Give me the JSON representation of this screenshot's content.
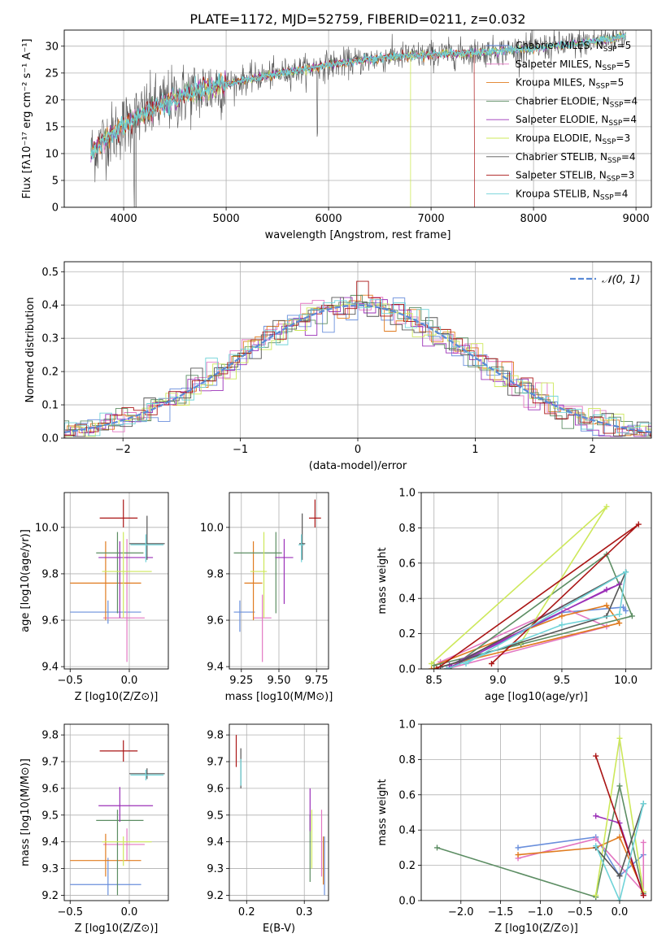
{
  "figure_title": "PLATE=1172, MJD=52759, FIBERID=0211, z=0.032",
  "colors": [
    "#6a8fdc",
    "#e377c2",
    "#e07b1f",
    "#5c8d63",
    "#9b30b8",
    "#cde85a",
    "#555555",
    "#aa1515",
    "#6fd3d8"
  ],
  "chart_data": [
    {
      "type": "line",
      "title": "PLATE=1172, MJD=52759, FIBERID=0211, z=0.032",
      "xlabel": "wavelength [Angstrom, rest frame]",
      "ylabel": "Flux [fλ10⁻¹⁷ erg cm⁻² s⁻¹ A⁻¹]",
      "xlim": [
        3420,
        9150
      ],
      "ylim": [
        0,
        33
      ],
      "xticks": [
        4000,
        5000,
        6000,
        7000,
        8000,
        9000
      ],
      "yticks": [
        0,
        5,
        10,
        15,
        20,
        25,
        30
      ],
      "legend_position": "right",
      "legend": [
        "Chabrier MILES, NSSP=5",
        "Salpeter MILES, NSSP=5",
        "Kroupa MILES, NSSP=5",
        "Chabrier ELODIE, NSSP=4",
        "Salpeter ELODIE, NSSP=4",
        "Kroupa ELODIE, NSSP=3",
        "Chabrier STELIB, NSSP=4",
        "Salpeter STELIB, NSSP=3",
        "Kroupa STELIB, NSSP=4"
      ],
      "data_continuum": {
        "x": [
          3680,
          3800,
          3950,
          4050,
          4200,
          4400,
          4600,
          4800,
          5000,
          5200,
          5400,
          5600,
          5800,
          6000,
          6200,
          6400,
          6600,
          6800,
          7000,
          7200,
          7400,
          7600,
          7800,
          8000,
          8200,
          8400,
          8600,
          8800,
          8900
        ],
        "y": [
          10,
          12.5,
          14.5,
          16,
          17.5,
          19.5,
          21,
          22,
          23,
          23.8,
          24.5,
          25.2,
          25.8,
          26.5,
          27,
          27.5,
          28,
          28.2,
          28.4,
          28.6,
          28.8,
          29,
          29.3,
          29.6,
          30,
          30.4,
          31,
          31.5,
          32
        ]
      }
    },
    {
      "type": "line",
      "xlabel": "(data-model)/error",
      "ylabel": "Normed distribution",
      "xlim": [
        -2.5,
        2.5
      ],
      "ylim": [
        0,
        0.53
      ],
      "xticks": [
        -2,
        -1,
        0,
        1,
        2
      ],
      "yticks": [
        0.0,
        0.1,
        0.2,
        0.3,
        0.4,
        0.5
      ],
      "legend": [
        "𝒩(0, 1)"
      ],
      "legend_position": "top-right",
      "reference_curve": "standard normal pdf",
      "histogram_bin_width": 0.1
    },
    {
      "type": "scatter",
      "xlabel": "Z [log10(Z/Z⊙)]",
      "ylabel": "age  [log10(age/yr)]",
      "xlim": [
        -0.55,
        0.33
      ],
      "ylim": [
        9.39,
        10.15
      ],
      "xticks": [
        -0.5,
        0.0
      ],
      "yticks": [
        9.4,
        9.6,
        9.8,
        10.0
      ],
      "points": [
        {
          "x": -0.18,
          "y": 9.635,
          "xerr": [
            0.32,
            0.28
          ],
          "yerr": [
            0.05,
            0.05
          ],
          "color": "#6a8fdc"
        },
        {
          "x": -0.02,
          "y": 9.61,
          "xerr": [
            0.2,
            0.15
          ],
          "yerr": [
            0.19,
            0.34
          ],
          "color": "#e377c2"
        },
        {
          "x": -0.2,
          "y": 9.76,
          "xerr": [
            0.3,
            0.3
          ],
          "yerr": [
            0.16,
            0.18
          ],
          "color": "#e07b1f"
        },
        {
          "x": -0.1,
          "y": 9.89,
          "xerr": [
            0.18,
            0.22
          ],
          "yerr": [
            0.26,
            0.09
          ],
          "color": "#5c8d63"
        },
        {
          "x": -0.08,
          "y": 9.87,
          "xerr": [
            0.18,
            0.28
          ],
          "yerr": [
            0.26,
            0.07
          ],
          "color": "#9b30b8"
        },
        {
          "x": -0.05,
          "y": 9.81,
          "xerr": [
            0.18,
            0.24
          ],
          "yerr": [
            0.2,
            0.17
          ],
          "color": "#cde85a"
        },
        {
          "x": 0.15,
          "y": 9.93,
          "xerr": [
            0.15,
            0.15
          ],
          "yerr": [
            0.07,
            0.12
          ],
          "color": "#555555"
        },
        {
          "x": -0.05,
          "y": 10.04,
          "xerr": [
            0.2,
            0.12
          ],
          "yerr": [
            0.04,
            0.08
          ],
          "color": "#aa1515"
        },
        {
          "x": 0.14,
          "y": 9.925,
          "xerr": [
            0.13,
            0.15
          ],
          "yerr": [
            0.075,
            0.045
          ],
          "color": "#6fd3d8"
        }
      ]
    },
    {
      "type": "scatter",
      "xlabel": "mass [log10(M/M⊙)]",
      "ylabel": "",
      "xlim": [
        9.17,
        9.83
      ],
      "ylim": [
        9.39,
        10.15
      ],
      "xticks": [
        9.25,
        9.5,
        9.75
      ],
      "yticks": [
        9.4,
        9.6,
        9.8,
        10.0
      ],
      "points": [
        {
          "x": 9.24,
          "y": 9.635,
          "xerr": [
            0.04,
            0.1
          ],
          "yerr": [
            0.085,
            0.05
          ],
          "color": "#6a8fdc"
        },
        {
          "x": 9.39,
          "y": 9.61,
          "xerr": [
            0.06,
            0.06
          ],
          "yerr": [
            0.19,
            0.1
          ],
          "color": "#e377c2"
        },
        {
          "x": 9.33,
          "y": 9.76,
          "xerr": [
            0.06,
            0.06
          ],
          "yerr": [
            0.16,
            0.18
          ],
          "color": "#e07b1f"
        },
        {
          "x": 9.48,
          "y": 9.89,
          "xerr": [
            0.28,
            0.04
          ],
          "yerr": [
            0.26,
            0.09
          ],
          "color": "#5c8d63"
        },
        {
          "x": 9.535,
          "y": 9.87,
          "xerr": [
            0.06,
            0.06
          ],
          "yerr": [
            0.2,
            0.08
          ],
          "color": "#9b30b8"
        },
        {
          "x": 9.4,
          "y": 9.81,
          "xerr": [
            0.09,
            0.02
          ],
          "yerr": [
            0.2,
            0.17
          ],
          "color": "#cde85a"
        },
        {
          "x": 9.655,
          "y": 9.93,
          "xerr": [
            0.02,
            0.02
          ],
          "yerr": [
            0.07,
            0.13
          ],
          "color": "#555555"
        },
        {
          "x": 9.74,
          "y": 10.04,
          "xerr": [
            0.04,
            0.04
          ],
          "yerr": [
            0.04,
            0.08
          ],
          "color": "#aa1515"
        },
        {
          "x": 9.65,
          "y": 9.925,
          "xerr": [
            0.02,
            0.02
          ],
          "yerr": [
            0.075,
            0.045
          ],
          "color": "#6fd3d8"
        }
      ]
    },
    {
      "type": "line",
      "xlabel": "age  [log10(age/yr)]",
      "ylabel": "mass weight",
      "xlim": [
        8.4,
        10.2
      ],
      "ylim": [
        0.0,
        1.0
      ],
      "xticks": [
        8.5,
        9.0,
        9.5,
        10.0
      ],
      "yticks": [
        0.0,
        0.2,
        0.4,
        0.6,
        0.8,
        1.0
      ],
      "series": [
        {
          "color": "#6a8fdc",
          "x": [
            8.6,
            9.5,
            9.98,
            10.0
          ],
          "y": [
            0.0,
            0.32,
            0.35,
            0.33
          ]
        },
        {
          "color": "#e377c2",
          "x": [
            8.55,
            9.5,
            9.85,
            8.6
          ],
          "y": [
            0.04,
            0.35,
            0.24,
            0.0
          ]
        },
        {
          "color": "#e07b1f",
          "x": [
            8.5,
            9.5,
            9.85,
            9.95,
            8.48
          ],
          "y": [
            0.02,
            0.3,
            0.36,
            0.26,
            0.0
          ]
        },
        {
          "color": "#5c8d63",
          "x": [
            8.62,
            9.85,
            10.05,
            9.18,
            8.5
          ],
          "y": [
            0.0,
            0.65,
            0.3,
            0.14,
            0.02
          ]
        },
        {
          "color": "#9b30b8",
          "x": [
            8.6,
            9.85,
            9.95,
            8.62
          ],
          "y": [
            0.0,
            0.45,
            0.48,
            0.02
          ]
        },
        {
          "color": "#cde85a",
          "x": [
            8.48,
            9.85,
            9.18
          ],
          "y": [
            0.03,
            0.92,
            0.15
          ]
        },
        {
          "color": "#555555",
          "x": [
            8.55,
            9.85,
            10.0,
            8.7
          ],
          "y": [
            0.01,
            0.3,
            0.55,
            0.04
          ]
        },
        {
          "color": "#aa1515",
          "x": [
            8.95,
            10.1,
            8.52
          ],
          "y": [
            0.03,
            0.82,
            0.0
          ]
        },
        {
          "color": "#6fd3d8",
          "x": [
            8.6,
            9.5,
            9.95,
            10.0,
            8.75
          ],
          "y": [
            0.0,
            0.25,
            0.31,
            0.55,
            0.03
          ]
        }
      ]
    },
    {
      "type": "scatter",
      "xlabel": "Z [log10(Z/Z⊙)]",
      "ylabel": "mass [log10(M/M⊙)]",
      "xlim": [
        -0.55,
        0.33
      ],
      "ylim": [
        9.18,
        9.84
      ],
      "xticks": [
        -0.5,
        0.0
      ],
      "yticks": [
        9.2,
        9.3,
        9.4,
        9.5,
        9.6,
        9.7,
        9.8
      ],
      "points": [
        {
          "x": -0.18,
          "y": 9.24,
          "xerr": [
            0.32,
            0.28
          ],
          "yerr": [
            0.04,
            0.1
          ],
          "color": "#6a8fdc"
        },
        {
          "x": -0.02,
          "y": 9.39,
          "xerr": [
            0.2,
            0.15
          ],
          "yerr": [
            0.06,
            0.06
          ],
          "color": "#e377c2"
        },
        {
          "x": -0.2,
          "y": 9.33,
          "xerr": [
            0.3,
            0.3
          ],
          "yerr": [
            0.06,
            0.1
          ],
          "color": "#e07b1f"
        },
        {
          "x": -0.1,
          "y": 9.48,
          "xerr": [
            0.18,
            0.22
          ],
          "yerr": [
            0.28,
            0.04
          ],
          "color": "#5c8d63"
        },
        {
          "x": -0.08,
          "y": 9.535,
          "xerr": [
            0.18,
            0.28
          ],
          "yerr": [
            0.06,
            0.07
          ],
          "color": "#9b30b8"
        },
        {
          "x": -0.05,
          "y": 9.4,
          "xerr": [
            0.18,
            0.24
          ],
          "yerr": [
            0.09,
            0.02
          ],
          "color": "#cde85a"
        },
        {
          "x": 0.15,
          "y": 9.655,
          "xerr": [
            0.15,
            0.15
          ],
          "yerr": [
            0.02,
            0.02
          ],
          "color": "#555555"
        },
        {
          "x": -0.05,
          "y": 9.74,
          "xerr": [
            0.2,
            0.12
          ],
          "yerr": [
            0.04,
            0.04
          ],
          "color": "#aa1515"
        },
        {
          "x": 0.14,
          "y": 9.65,
          "xerr": [
            0.13,
            0.15
          ],
          "yerr": [
            0.02,
            0.02
          ],
          "color": "#6fd3d8"
        }
      ]
    },
    {
      "type": "scatter",
      "xlabel": "E(B-V)",
      "ylabel": "",
      "xlim": [
        0.17,
        0.342
      ],
      "ylim": [
        9.18,
        9.84
      ],
      "xticks": [
        0.2,
        0.3
      ],
      "yticks": [
        9.2,
        9.3,
        9.4,
        9.5,
        9.6,
        9.7,
        9.8
      ],
      "points": [
        {
          "x": 0.335,
          "y": 9.31,
          "xerr": [
            0,
            0
          ],
          "yerr": [
            0.11,
            0.11
          ],
          "color": "#6a8fdc"
        },
        {
          "x": 0.33,
          "y": 9.41,
          "xerr": [
            0,
            0
          ],
          "yerr": [
            0.14,
            0.11
          ],
          "color": "#e377c2"
        },
        {
          "x": 0.333,
          "y": 9.33,
          "xerr": [
            0,
            0
          ],
          "yerr": [
            0.09,
            0.09
          ],
          "color": "#e07b1f"
        },
        {
          "x": 0.31,
          "y": 9.4,
          "xerr": [
            0,
            0
          ],
          "yerr": [
            0.15,
            0.1
          ],
          "color": "#5c8d63"
        },
        {
          "x": 0.31,
          "y": 9.53,
          "xerr": [
            0,
            0
          ],
          "yerr": [
            0.09,
            0.07
          ],
          "color": "#9b30b8"
        },
        {
          "x": 0.313,
          "y": 9.38,
          "xerr": [
            0,
            0
          ],
          "yerr": [
            0.08,
            0.14
          ],
          "color": "#cde85a"
        },
        {
          "x": 0.19,
          "y": 9.675,
          "xerr": [
            0,
            0
          ],
          "yerr": [
            0.075,
            0.075
          ],
          "color": "#555555"
        },
        {
          "x": 0.182,
          "y": 9.74,
          "xerr": [
            0,
            0
          ],
          "yerr": [
            0.06,
            0.06
          ],
          "color": "#aa1515"
        },
        {
          "x": 0.19,
          "y": 9.66,
          "xerr": [
            0,
            0
          ],
          "yerr": [
            0.05,
            0.05
          ],
          "color": "#6fd3d8"
        }
      ]
    },
    {
      "type": "line",
      "xlabel": "Z [log10(Z/Z⊙)]",
      "ylabel": "mass weight",
      "xlim": [
        -2.5,
        0.4
      ],
      "ylim": [
        0.0,
        1.0
      ],
      "xticks": [
        -2.0,
        -1.5,
        -1.0,
        -0.5,
        0.0
      ],
      "yticks": [
        0.0,
        0.2,
        0.4,
        0.6,
        0.8,
        1.0
      ],
      "series": [
        {
          "color": "#6a8fdc",
          "x": [
            -1.28,
            -0.3,
            0.0,
            0.3
          ],
          "y": [
            0.3,
            0.36,
            0.14,
            0.26
          ]
        },
        {
          "color": "#e377c2",
          "x": [
            -1.28,
            -0.3,
            0.3,
            0.3
          ],
          "y": [
            0.24,
            0.35,
            0.05,
            0.33
          ]
        },
        {
          "color": "#e07b1f",
          "x": [
            -1.28,
            -0.3,
            0.0,
            0.3
          ],
          "y": [
            0.26,
            0.3,
            0.36,
            0.05
          ]
        },
        {
          "color": "#5c8d63",
          "x": [
            -2.3,
            -0.3,
            0.0,
            0.3
          ],
          "y": [
            0.3,
            0.02,
            0.65,
            0.04
          ]
        },
        {
          "color": "#9b30b8",
          "x": [
            -0.3,
            0.0,
            0.3
          ],
          "y": [
            0.48,
            0.44,
            0.03
          ]
        },
        {
          "color": "#cde85a",
          "x": [
            -0.3,
            0.0,
            0.3
          ],
          "y": [
            0.03,
            0.92,
            0.05
          ]
        },
        {
          "color": "#555555",
          "x": [
            -0.3,
            0.0,
            0.3
          ],
          "y": [
            0.3,
            0.14,
            0.55
          ]
        },
        {
          "color": "#aa1515",
          "x": [
            -0.3,
            0.3
          ],
          "y": [
            0.82,
            0.03
          ]
        },
        {
          "color": "#6fd3d8",
          "x": [
            -0.3,
            0.0,
            0.3
          ],
          "y": [
            0.31,
            0.0,
            0.55
          ]
        }
      ]
    }
  ]
}
